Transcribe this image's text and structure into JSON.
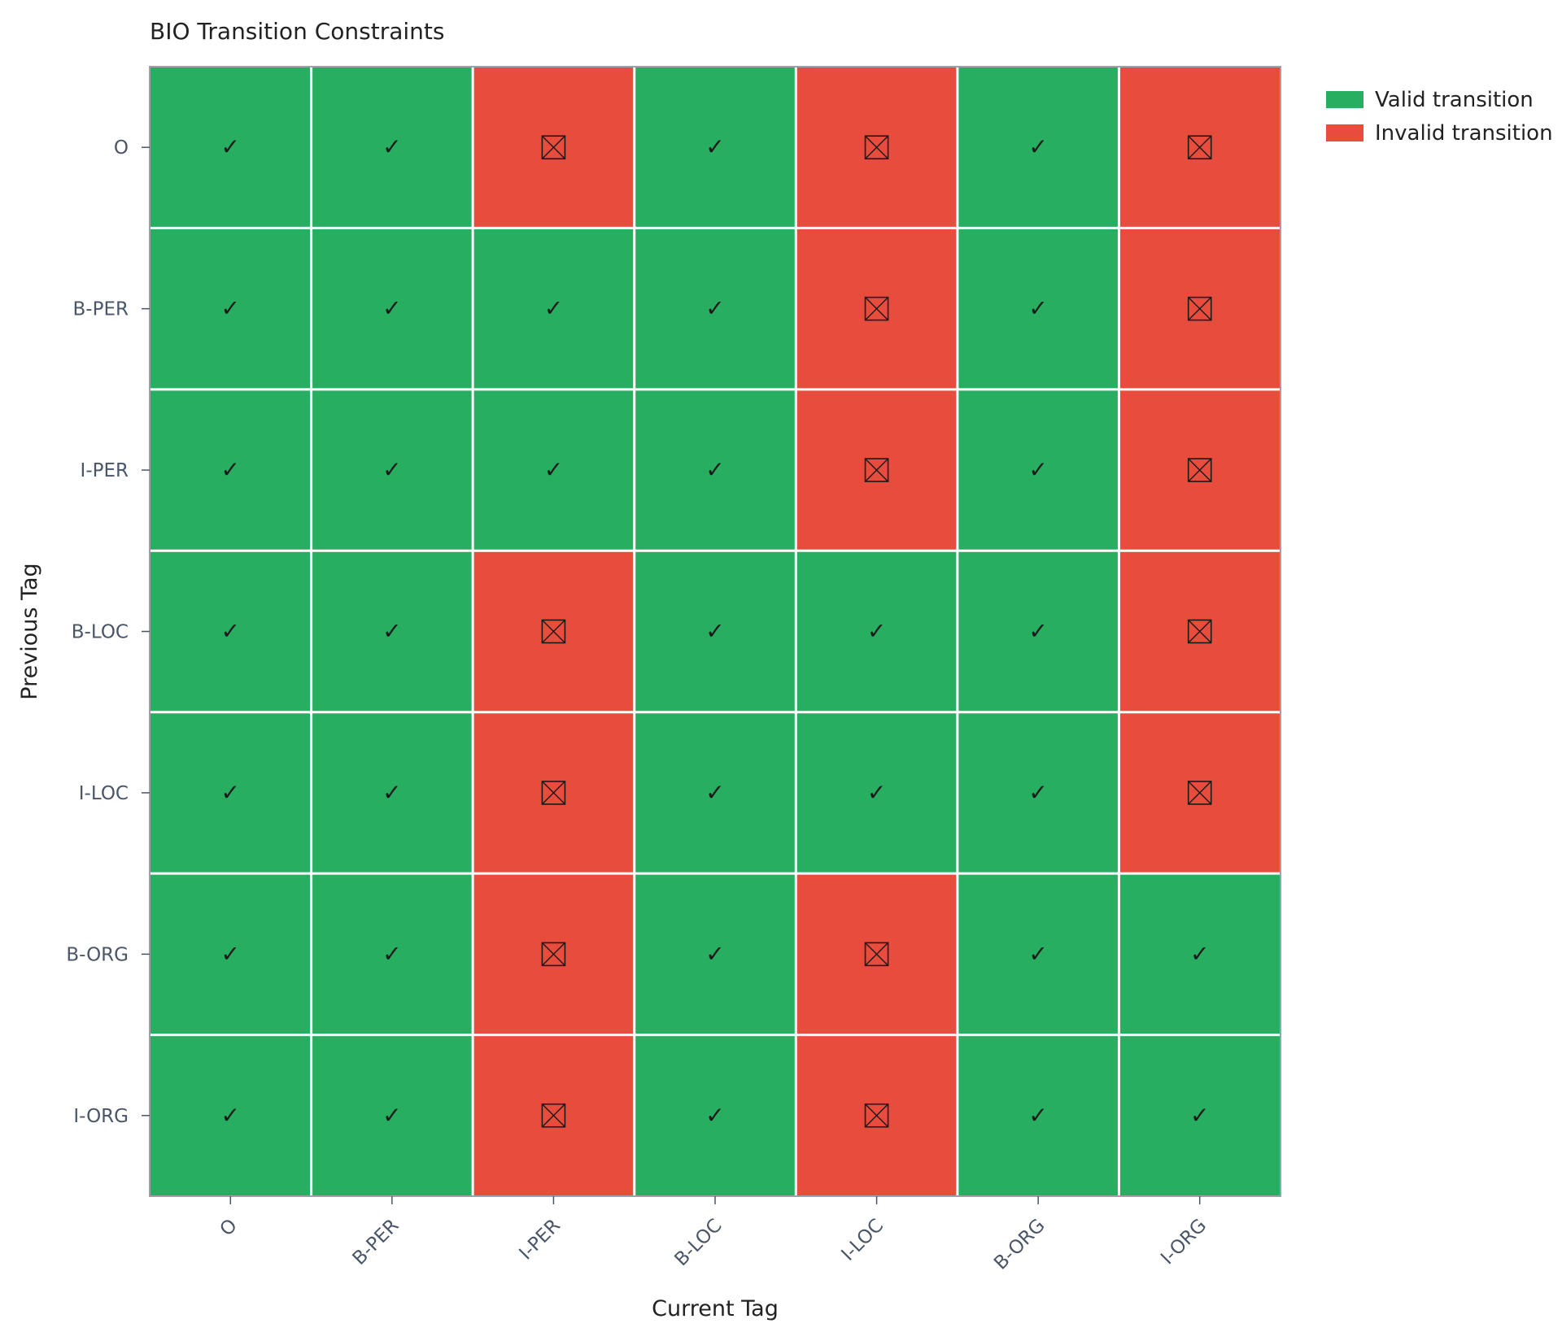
{
  "chart_data": {
    "type": "heatmap",
    "title": "BIO Transition Constraints",
    "xlabel": "Current Tag",
    "ylabel": "Previous Tag",
    "x_categories": [
      "O",
      "B-PER",
      "I-PER",
      "B-LOC",
      "I-LOC",
      "B-ORG",
      "I-ORG"
    ],
    "y_categories": [
      "O",
      "B-PER",
      "I-PER",
      "B-LOC",
      "I-LOC",
      "B-ORG",
      "I-ORG"
    ],
    "values": [
      [
        1,
        1,
        0,
        1,
        0,
        1,
        0
      ],
      [
        1,
        1,
        1,
        1,
        0,
        1,
        0
      ],
      [
        1,
        1,
        1,
        1,
        0,
        1,
        0
      ],
      [
        1,
        1,
        0,
        1,
        1,
        1,
        0
      ],
      [
        1,
        1,
        0,
        1,
        1,
        1,
        0
      ],
      [
        1,
        1,
        0,
        1,
        0,
        1,
        1
      ],
      [
        1,
        1,
        0,
        1,
        0,
        1,
        1
      ]
    ],
    "legend": {
      "placement": "top-right",
      "entries": [
        {
          "label": "Valid transition",
          "value": 1,
          "color": "#27ae60"
        },
        {
          "label": "Invalid transition",
          "value": 0,
          "color": "#e74c3c"
        }
      ]
    },
    "valid_symbol": "✓",
    "grid": true
  },
  "colors": {
    "valid": "#27ae60",
    "invalid": "#e74c3c",
    "gridline": "#ffffff",
    "frame": "#9aa3ad"
  }
}
